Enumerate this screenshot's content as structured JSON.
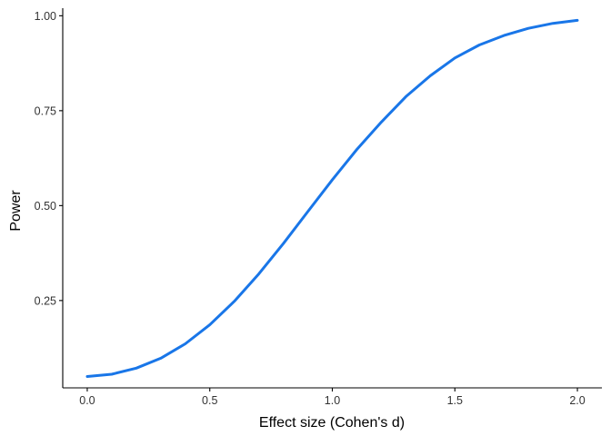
{
  "chart_data": {
    "type": "line",
    "xlabel": "Effect size (Cohen's d)",
    "ylabel": "Power",
    "xlim": [
      -0.1,
      2.1
    ],
    "ylim": [
      0.02,
      1.02
    ],
    "x_ticks": [
      0.0,
      0.5,
      1.0,
      1.5,
      2.0
    ],
    "x_tick_labels": [
      "0.0",
      "0.5",
      "1.0",
      "1.5",
      "2.0"
    ],
    "y_ticks": [
      0.25,
      0.5,
      0.75,
      1.0
    ],
    "y_tick_labels": [
      "0.25",
      "0.50",
      "0.75",
      "1.00"
    ],
    "grid": false,
    "color": "#1976e8",
    "series": [
      {
        "x": [
          0.0,
          0.1,
          0.2,
          0.3,
          0.4,
          0.5,
          0.6,
          0.7,
          0.8,
          0.9,
          1.0,
          1.1,
          1.2,
          1.3,
          1.4,
          1.5,
          1.6,
          1.7,
          1.8,
          1.9,
          2.0
        ],
        "y": [
          0.05,
          0.056,
          0.072,
          0.098,
          0.136,
          0.186,
          0.248,
          0.32,
          0.4,
          0.484,
          0.568,
          0.648,
          0.72,
          0.787,
          0.842,
          0.889,
          0.923,
          0.948,
          0.967,
          0.98,
          0.988
        ]
      }
    ]
  }
}
